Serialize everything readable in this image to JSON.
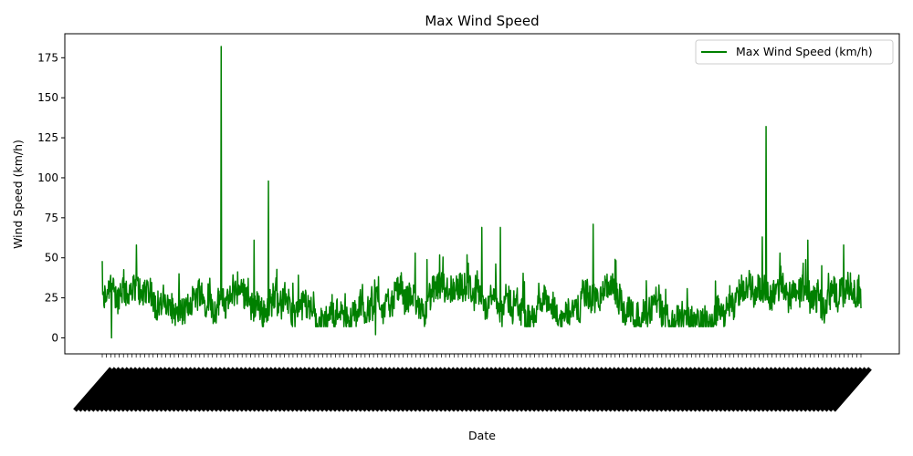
{
  "chart_data": {
    "type": "line",
    "title": "Max Wind Speed",
    "xlabel": "Date",
    "ylabel": "Wind Speed (km/h)",
    "ylim": [
      -10,
      190
    ],
    "yticks": [
      0,
      25,
      50,
      75,
      100,
      125,
      150,
      175
    ],
    "grid": false,
    "legend_position": "top-right",
    "x_tick_labels_note": "dense overlapping date labels rotated about 45 degrees, unreadable",
    "series": [
      {
        "name": "Max Wind Speed (km/h)",
        "color": "#008000",
        "points_note": "daily maximum wind speed, approx. 1800 observations, values approximated",
        "approx_stats": {
          "typical_min": 7,
          "typical_max": 45,
          "baseline": 20
        },
        "spikes": [
          {
            "index_fraction": 0.0,
            "value": 48
          },
          {
            "index_fraction": 0.012,
            "value": 0
          },
          {
            "index_fraction": 0.045,
            "value": 58
          },
          {
            "index_fraction": 0.157,
            "value": 182
          },
          {
            "index_fraction": 0.219,
            "value": 98
          },
          {
            "index_fraction": 0.2,
            "value": 61
          },
          {
            "index_fraction": 0.36,
            "value": 2
          },
          {
            "index_fraction": 0.5,
            "value": 69
          },
          {
            "index_fraction": 0.525,
            "value": 69
          },
          {
            "index_fraction": 0.647,
            "value": 71
          },
          {
            "index_fraction": 0.875,
            "value": 132
          },
          {
            "index_fraction": 0.87,
            "value": 63
          },
          {
            "index_fraction": 0.93,
            "value": 61
          },
          {
            "index_fraction": 0.977,
            "value": 58
          }
        ]
      }
    ]
  }
}
